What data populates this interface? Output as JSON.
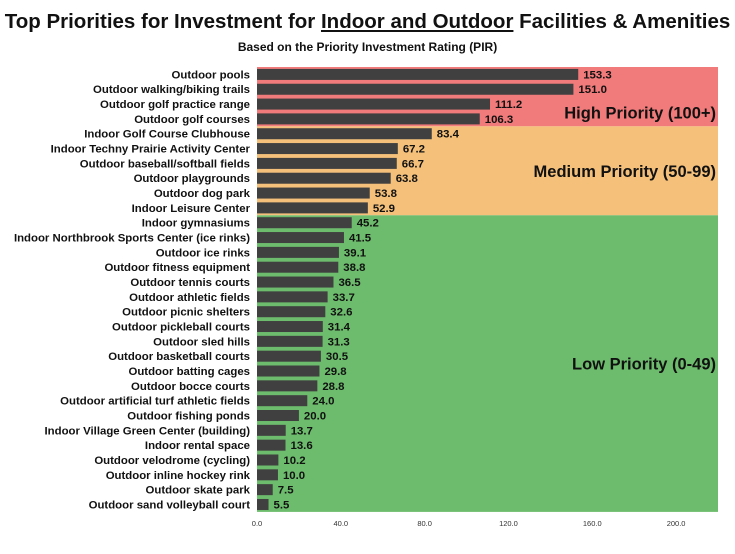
{
  "chart_data": {
    "type": "bar",
    "orientation": "horizontal",
    "title_parts": [
      "Top Priorities for Investment for ",
      "Indoor and Outdoor",
      " Facilities & Amenities"
    ],
    "subtitle": "Based on the Priority Investment Rating (PIR)",
    "categories": [
      "Outdoor pools",
      "Outdoor walking/biking trails",
      "Outdoor golf practice range",
      "Outdoor golf courses",
      "Indoor Golf Course Clubhouse",
      "Indoor Techny Prairie Activity Center",
      "Outdoor baseball/softball fields",
      "Outdoor playgrounds",
      "Outdoor dog park",
      "Indoor Leisure Center",
      "Indoor gymnasiums",
      "Indoor Northbrook Sports Center (ice rinks)",
      "Outdoor ice rinks",
      "Outdoor fitness equipment",
      "Outdoor tennis courts",
      "Outdoor athletic fields",
      "Outdoor picnic shelters",
      "Outdoor pickleball courts",
      "Outdoor sled hills",
      "Outdoor basketball courts",
      "Outdoor batting cages",
      "Outdoor bocce courts",
      "Outdoor artificial turf athletic fields",
      "Outdoor fishing ponds",
      "Indoor Village Green Center (building)",
      "Indoor rental space",
      "Outdoor velodrome (cycling)",
      "Outdoor inline hockey rink",
      "Outdoor skate park",
      "Outdoor sand volleyball court"
    ],
    "values": [
      153.3,
      151.0,
      111.2,
      106.3,
      83.4,
      67.2,
      66.7,
      63.8,
      53.8,
      52.9,
      45.2,
      41.5,
      39.1,
      38.8,
      36.5,
      33.7,
      32.6,
      31.4,
      31.3,
      30.5,
      29.8,
      28.8,
      24.0,
      20.0,
      13.7,
      13.6,
      10.2,
      10.0,
      7.5,
      5.5
    ],
    "value_labels": [
      "153.3",
      "151.0",
      "111.2",
      "106.3",
      "83.4",
      "67.2",
      "66.7",
      "63.8",
      "53.8",
      "52.9",
      "45.2",
      "41.5",
      "39.1",
      "38.8",
      "36.5",
      "33.7",
      "32.6",
      "31.4",
      "31.3",
      "30.5",
      "29.8",
      "28.8",
      "24.0",
      "20.0",
      "13.7",
      "13.6",
      "10.2",
      "10.0",
      "7.5",
      "5.5"
    ],
    "xlim": [
      0,
      220
    ],
    "xticks": [
      0,
      40,
      80,
      120,
      160,
      200
    ],
    "xtick_labels": [
      "0.0",
      "40.0",
      "80.0",
      "120.0",
      "160.0",
      "200.0"
    ],
    "bar_color": "#404040",
    "zones": [
      {
        "label": "High Priority (100+)",
        "first_index": 0,
        "last_index": 3,
        "color": "#f17a7a"
      },
      {
        "label": "Medium Priority (50-99)",
        "first_index": 4,
        "last_index": 9,
        "color": "#f4c07a"
      },
      {
        "label": "Low Priority (0-49)",
        "first_index": 10,
        "last_index": 29,
        "color": "#6dbb6d"
      }
    ],
    "grid": false,
    "legend": "none"
  }
}
